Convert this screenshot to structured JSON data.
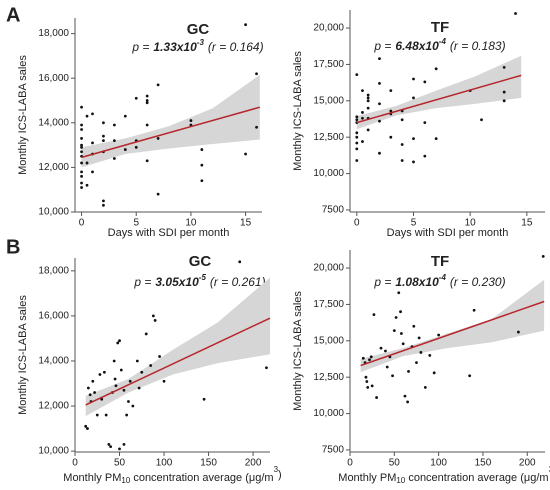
{
  "chart_data": [
    {
      "type": "scatter",
      "panel_label": "A",
      "title": "GC",
      "annotation": {
        "p_label": "p =",
        "p_mantissa": "1.33x10",
        "p_exponent": "-3",
        "r_text": "(r = 0.164)"
      },
      "ylabel": "Monthly ICS-LABA sales",
      "xlabel": {
        "parts": [
          "Days with SDI per month"
        ]
      },
      "xlim": [
        -0.6,
        16.5
      ],
      "xticks": [
        0,
        5,
        10,
        15
      ],
      "ylim": [
        10000,
        18700
      ],
      "yticks": [
        {
          "value": 10000,
          "label": "10,000"
        },
        {
          "value": 12000,
          "label": "12,000"
        },
        {
          "value": 14000,
          "label": "14,000"
        },
        {
          "value": 16000,
          "label": "16,000"
        },
        {
          "value": 18000,
          "label": "18,000"
        }
      ],
      "color": "#111111",
      "fit_color": "#b5272d",
      "band_color": "#d6d6d6",
      "x": [
        0,
        0,
        0,
        0,
        0,
        0,
        0,
        0,
        0,
        0,
        0,
        0,
        0,
        0.5,
        0.5,
        0.5,
        1,
        1,
        1,
        1,
        2,
        2,
        2,
        2,
        2,
        2,
        3,
        3,
        3,
        4,
        4,
        5,
        5,
        5,
        6,
        6,
        6,
        6,
        6,
        7,
        7,
        7,
        10,
        10,
        11,
        11,
        11,
        15,
        15,
        16,
        16
      ],
      "values": [
        11100,
        11300,
        11600,
        11800,
        12200,
        12500,
        12700,
        13000,
        13300,
        13700,
        13900,
        14700,
        12900,
        14300,
        12200,
        11200,
        12600,
        13100,
        14400,
        11800,
        10300,
        10500,
        12700,
        13200,
        14000,
        13400,
        12400,
        13200,
        13900,
        12800,
        14300,
        13200,
        15100,
        12900,
        15200,
        14900,
        12300,
        13900,
        15000,
        10800,
        15700,
        13300,
        13900,
        14100,
        12100,
        12800,
        11400,
        18400,
        12600,
        16200,
        13800
      ],
      "fit": {
        "x": [
          0,
          16.3
        ],
        "values": [
          12450,
          14700
        ]
      },
      "ci": {
        "x": [
          0,
          4,
          8,
          12,
          16.3
        ],
        "lower": [
          12000,
          12600,
          12850,
          13050,
          13250
        ],
        "upper": [
          12900,
          13300,
          13850,
          14650,
          16150
        ]
      }
    },
    {
      "type": "scatter",
      "title": "TF",
      "annotation": {
        "p_label": "p =",
        "p_mantissa": "6.48x10",
        "p_exponent": "-4",
        "r_text": "(r = 0.183)"
      },
      "ylabel": "Monthly ICS-LABA sales",
      "xlabel": {
        "parts": [
          "Days with SDI per month"
        ]
      },
      "xlim": [
        -0.6,
        16.6
      ],
      "xticks": [
        0,
        5,
        10,
        15
      ],
      "ylim": [
        7360,
        21240
      ],
      "yticks": [
        7500,
        {
          "value": 10000,
          "label": "10,000"
        },
        {
          "value": 12500,
          "label": "12,500"
        },
        {
          "value": 15000,
          "label": "15,000"
        },
        {
          "value": 17500,
          "label": "17,500"
        },
        {
          "value": 20000,
          "label": "20,000"
        }
      ],
      "color": "#111111",
      "fit_color": "#b5272d",
      "band_color": "#d6d6d6",
      "x": [
        0,
        0,
        0,
        0,
        0,
        0,
        0,
        0,
        0,
        0.5,
        0.5,
        0.5,
        0.5,
        1,
        1,
        1,
        1,
        1,
        1,
        2,
        2,
        2,
        2,
        2,
        3,
        3,
        3,
        3,
        4,
        4,
        4,
        4,
        5,
        5,
        5,
        5,
        6,
        6,
        6,
        7,
        7,
        10,
        11,
        13,
        13,
        13,
        14
      ],
      "values": [
        11700,
        12100,
        12500,
        13500,
        13700,
        13900,
        16800,
        10900,
        12800,
        13800,
        14200,
        15700,
        12200,
        13000,
        14500,
        15200,
        15400,
        15000,
        13800,
        14800,
        17900,
        16200,
        13600,
        11400,
        14100,
        14300,
        15700,
        12500,
        14300,
        13700,
        10900,
        12000,
        12400,
        15200,
        16500,
        10800,
        16300,
        13500,
        11200,
        17200,
        12400,
        15700,
        13700,
        17300,
        15600,
        15000,
        21000
      ],
      "fit": {
        "x": [
          0,
          14.5
        ],
        "values": [
          13500,
          16750
        ]
      },
      "ci": {
        "x": [
          0,
          3.5,
          7,
          10.5,
          14.5
        ],
        "lower": [
          13050,
          14000,
          14500,
          14800,
          15200
        ],
        "upper": [
          13950,
          14650,
          15700,
          16700,
          18100
        ]
      }
    },
    {
      "type": "scatter",
      "panel_label": "B",
      "title": "GC",
      "annotation": {
        "p_label": "p =",
        "p_mantissa": "3.05x10",
        "p_exponent": "-5",
        "r_text": "(r = 0.261)"
      },
      "ylabel": "Monthly ICS-LABA sales",
      "xlabel": {
        "parts": [
          "Monthly PM",
          "10",
          " concentration average (μg/m",
          "3",
          ")"
        ]
      },
      "xlim": [
        0,
        219
      ],
      "xticks": [
        0,
        50,
        100,
        150,
        200
      ],
      "ylim": [
        9960,
        18570
      ],
      "yticks": [
        {
          "value": 10000,
          "label": "10,000"
        },
        {
          "value": 12000,
          "label": "12,000"
        },
        {
          "value": 14000,
          "label": "14,000"
        },
        {
          "value": 16000,
          "label": "16,000"
        },
        {
          "value": 18000,
          "label": "18,000"
        }
      ],
      "color": "#111111",
      "fit_color": "#b5272d",
      "band_color": "#d6d6d6",
      "x": [
        12,
        14,
        15,
        17,
        18,
        20,
        22,
        25,
        28,
        30,
        33,
        35,
        38,
        40,
        42,
        44,
        45,
        46,
        48,
        50,
        52,
        55,
        58,
        60,
        62,
        65,
        70,
        72,
        75,
        80,
        85,
        88,
        90,
        95,
        100,
        145,
        185,
        215,
        50,
        55
      ],
      "values": [
        11100,
        11000,
        12800,
        12500,
        12200,
        13100,
        12600,
        11600,
        13400,
        12300,
        13500,
        11600,
        10300,
        10200,
        12600,
        14000,
        13200,
        12900,
        14800,
        14900,
        13600,
        12700,
        11600,
        12200,
        13100,
        12000,
        14000,
        12800,
        13500,
        15200,
        13800,
        16000,
        15800,
        14200,
        13100,
        12300,
        18400,
        13700,
        10100,
        10300
      ],
      "fit": {
        "x": [
          12,
          219
        ],
        "values": [
          12050,
          15900
        ]
      },
      "ci": {
        "x": [
          12,
          60,
          110,
          160,
          219
        ],
        "lower": [
          11550,
          12600,
          13400,
          13900,
          14300
        ],
        "upper": [
          12450,
          13200,
          14500,
          15700,
          17700
        ]
      }
    },
    {
      "type": "scatter",
      "title": "TF",
      "annotation": {
        "p_label": "p =",
        "p_mantissa": "1.08x10",
        "p_exponent": "-4",
        "r_text": "(r = 0.230)"
      },
      "ylabel": "Monthly ICS-LABA sales",
      "xlabel": {
        "parts": [
          "Monthly PM",
          "10",
          " concentration average (μg/m",
          "3",
          ")"
        ]
      },
      "xlim": [
        0,
        220
      ],
      "xticks": [
        0,
        50,
        100,
        150,
        200
      ],
      "ylim": [
        7360,
        21240
      ],
      "yticks": [
        7500,
        {
          "value": 10000,
          "label": "10,000"
        },
        {
          "value": 12500,
          "label": "12,500"
        },
        {
          "value": 15000,
          "label": "15,000"
        },
        {
          "value": 17500,
          "label": "17,500"
        },
        {
          "value": 20000,
          "label": "20,000"
        }
      ],
      "color": "#111111",
      "fit_color": "#b5272d",
      "band_color": "#d6d6d6",
      "x": [
        15,
        17,
        18,
        19,
        20,
        22,
        24,
        25,
        27,
        30,
        35,
        40,
        42,
        45,
        48,
        50,
        52,
        55,
        57,
        58,
        60,
        62,
        65,
        66,
        70,
        72,
        75,
        78,
        80,
        85,
        90,
        95,
        100,
        135,
        140,
        190,
        218
      ],
      "values": [
        13800,
        13500,
        12500,
        12200,
        11800,
        13700,
        13900,
        11900,
        16800,
        11100,
        14500,
        14300,
        13200,
        13900,
        12600,
        15700,
        16600,
        18300,
        17000,
        15500,
        14800,
        11200,
        10800,
        12900,
        14600,
        16000,
        13500,
        15200,
        14200,
        11800,
        14000,
        12800,
        15400,
        12600,
        17100,
        15600,
        20800
      ],
      "fit": {
        "x": [
          12,
          219
        ],
        "values": [
          13300,
          17700
        ]
      },
      "ci": {
        "x": [
          12,
          60,
          110,
          160,
          219
        ],
        "lower": [
          12850,
          13950,
          14500,
          14900,
          15700
        ],
        "upper": [
          13750,
          14500,
          15500,
          16500,
          19200
        ]
      }
    }
  ]
}
